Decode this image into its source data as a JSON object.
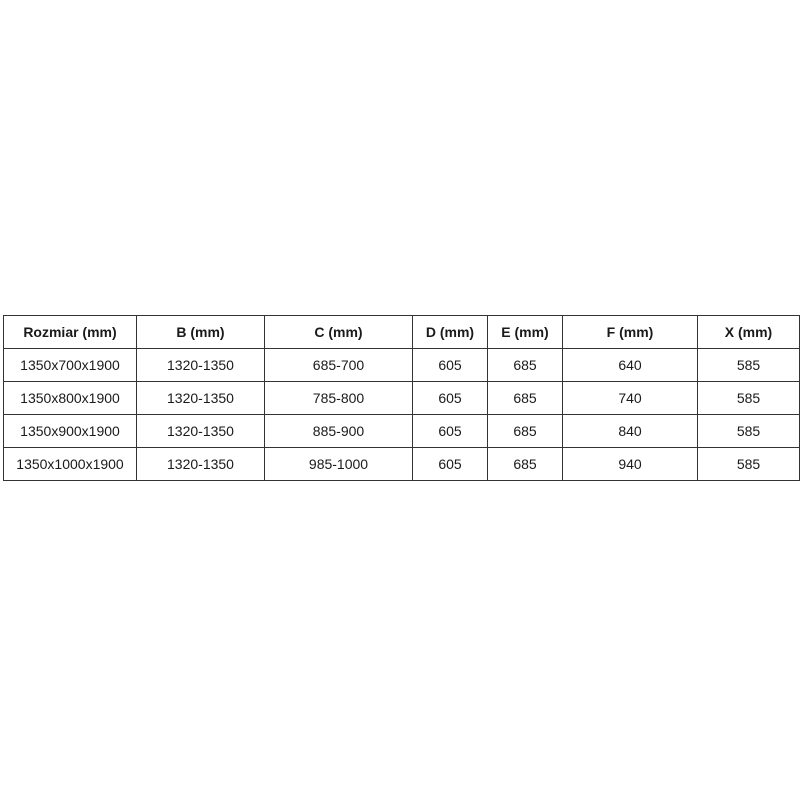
{
  "table": {
    "headers": [
      "Rozmiar (mm)",
      "B (mm)",
      "C (mm)",
      "D (mm)",
      "E (mm)",
      "F (mm)",
      "X (mm)"
    ],
    "rows": [
      [
        "1350x700x1900",
        "1320-1350",
        "685-700",
        "605",
        "685",
        "640",
        "585"
      ],
      [
        "1350x800x1900",
        "1320-1350",
        "785-800",
        "605",
        "685",
        "740",
        "585"
      ],
      [
        "1350x900x1900",
        "1320-1350",
        "885-900",
        "605",
        "685",
        "840",
        "585"
      ],
      [
        "1350x1000x1900",
        "1320-1350",
        "985-1000",
        "605",
        "685",
        "940",
        "585"
      ]
    ]
  }
}
